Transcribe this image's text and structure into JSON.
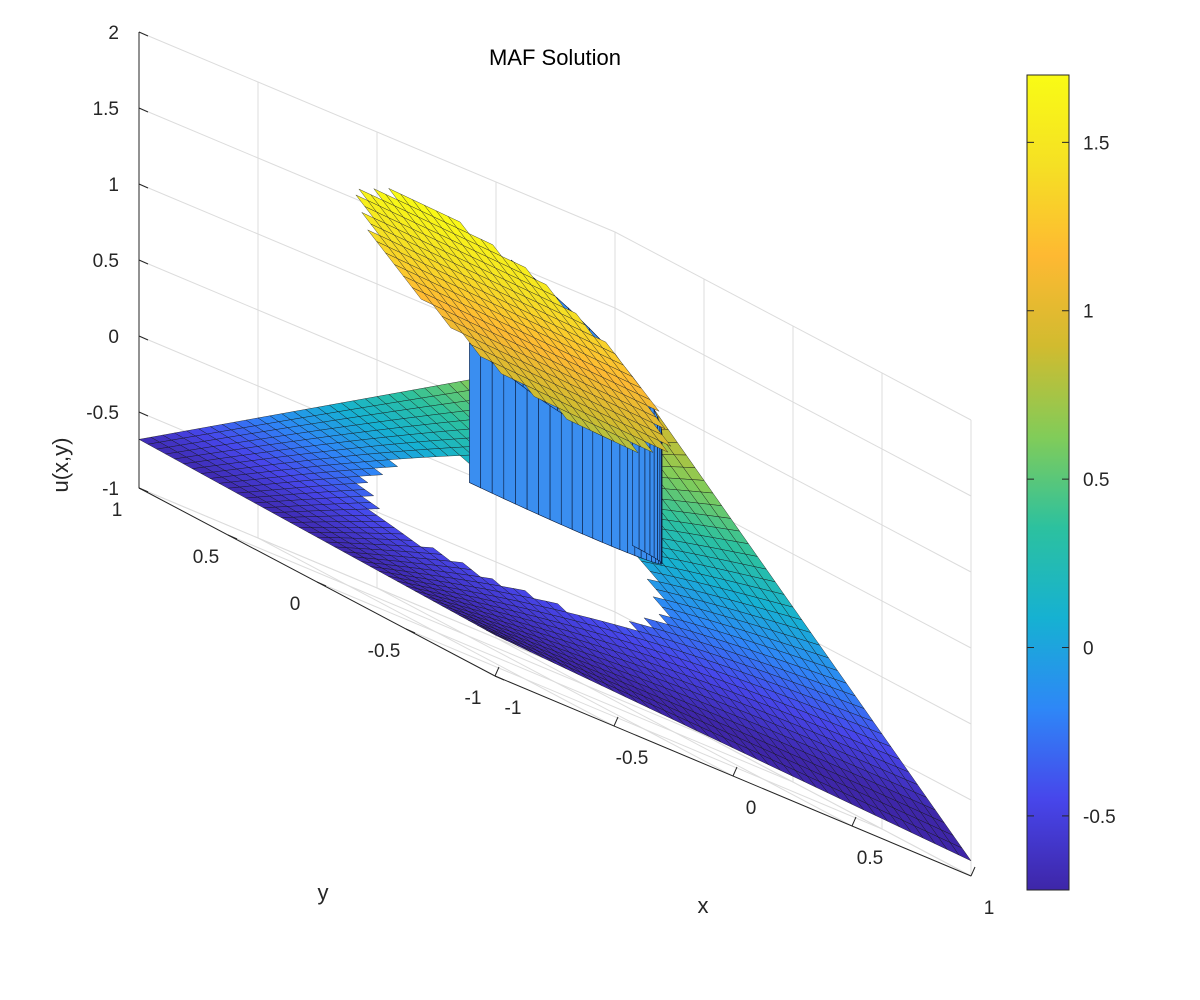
{
  "chart_data": {
    "type": "surface3d",
    "title": "MAF Solution",
    "xlabel": "x",
    "ylabel": "y",
    "zlabel": "u(x,y)",
    "xlim": [
      -1,
      1
    ],
    "ylim": [
      -1,
      1
    ],
    "zlim": [
      -1,
      2
    ],
    "x_ticks": [
      -1,
      -0.5,
      0,
      0.5,
      1
    ],
    "x_tick_labels": [
      "-1",
      "-0.5",
      "0",
      "0.5",
      "1"
    ],
    "y_ticks": [
      -1,
      -0.5,
      0,
      0.5,
      1
    ],
    "y_tick_labels": [
      "-1",
      "-0.5",
      "0",
      "0.5",
      "1"
    ],
    "z_ticks": [
      -1,
      -0.5,
      0,
      0.5,
      1,
      1.5,
      2
    ],
    "z_tick_labels": [
      "-1",
      "-0.5",
      "0",
      "0.5",
      "1",
      "1.5",
      "2"
    ],
    "grid": true,
    "colormap": "parula",
    "colorbar": {
      "placement": "right",
      "range": [
        -0.72,
        1.7
      ],
      "ticks": [
        -0.5,
        0,
        0.5,
        1,
        1.5
      ],
      "tick_labels": [
        "-0.5",
        "0",
        "0.5",
        "1",
        "1.5"
      ],
      "colors": [
        "#3e26a8",
        "#4746eb",
        "#2e87f7",
        "#16b1d2",
        "#2cc19f",
        "#81cc59",
        "#d1bb2f",
        "#feb932",
        "#f5e024",
        "#f9fb15"
      ]
    },
    "surface": {
      "corner_values": [
        {
          "x": -1,
          "y": -1,
          "u": -0.73
        },
        {
          "x": 1,
          "y": -1,
          "u": -0.9
        },
        {
          "x": -1,
          "y": 1,
          "u": -0.68
        },
        {
          "x": 1,
          "y": 1,
          "u": 1.2
        }
      ],
      "disc_region": {
        "center_x": -0.1,
        "center_y": 0.1,
        "radius": 0.5,
        "top_u_range": [
          0.8,
          1.7
        ],
        "wall_bottom_u": 0.1
      }
    }
  }
}
